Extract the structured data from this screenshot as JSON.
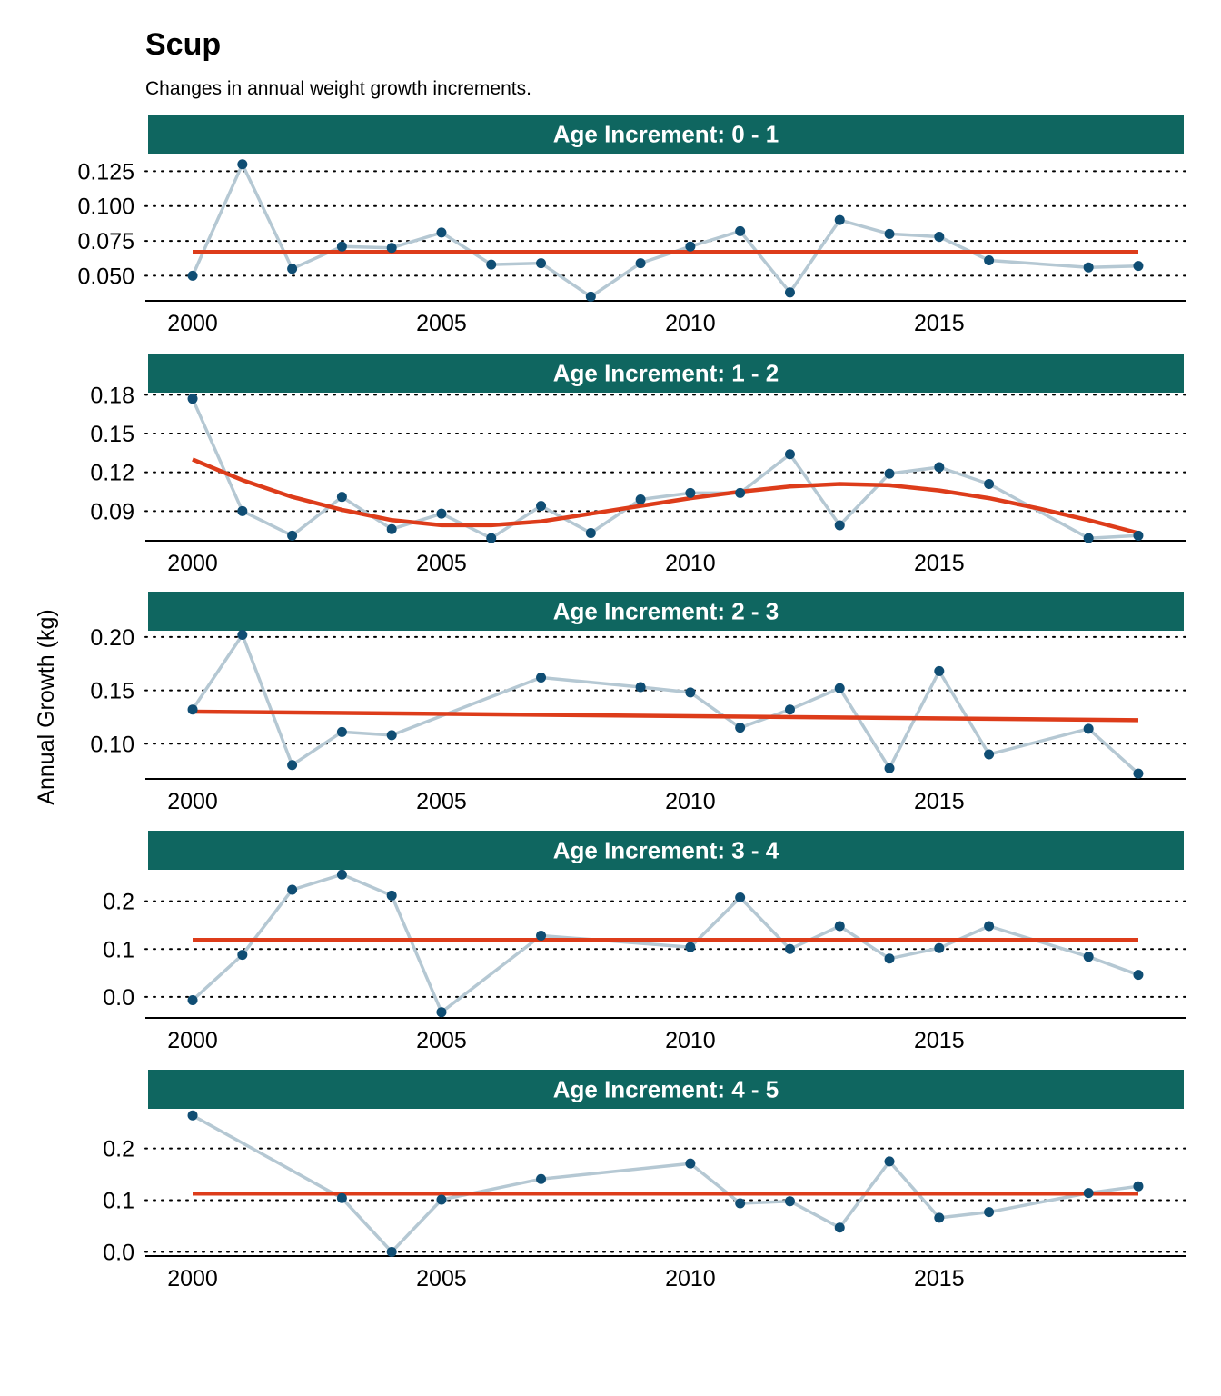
{
  "title": "Scup",
  "subtitle": "Changes in annual weight growth increments.",
  "ylabel": "Annual Growth  (kg)",
  "colors": {
    "strip": "#0f6660",
    "strip_text": "#ffffff",
    "line": "#b5c8d3",
    "point": "#0f4d73",
    "trend": "#dd3c1a",
    "grid": "#000000",
    "axis": "#000000"
  },
  "chart_data": [
    {
      "type": "line",
      "panel": "Age Increment: 0 - 1",
      "x": [
        2000,
        2001,
        2002,
        2003,
        2004,
        2005,
        2006,
        2007,
        2008,
        2009,
        2010,
        2011,
        2012,
        2013,
        2014,
        2015,
        2016,
        2018,
        2019
      ],
      "y": [
        0.05,
        0.13,
        0.055,
        0.071,
        0.07,
        0.081,
        0.058,
        0.059,
        0.035,
        0.059,
        0.071,
        0.082,
        0.038,
        0.09,
        0.08,
        0.078,
        0.061,
        0.056,
        0.057
      ],
      "trend": {
        "x": [
          2000,
          2019
        ],
        "y": [
          0.067,
          0.067
        ]
      },
      "yticks": [
        0.05,
        0.075,
        0.1,
        0.125
      ],
      "ytick_labels": [
        "0.050",
        "0.075",
        "0.100",
        "0.125"
      ],
      "ylim": [
        0.032,
        0.137
      ],
      "xticks": [
        2000,
        2005,
        2010,
        2015
      ],
      "xlim": [
        1999.05,
        2019.95
      ]
    },
    {
      "type": "line",
      "panel": "Age Increment: 1 - 2",
      "x": [
        2000,
        2001,
        2002,
        2003,
        2004,
        2005,
        2006,
        2007,
        2008,
        2009,
        2010,
        2011,
        2012,
        2013,
        2014,
        2015,
        2016,
        2018,
        2019
      ],
      "y": [
        0.177,
        0.09,
        0.071,
        0.101,
        0.076,
        0.088,
        0.069,
        0.094,
        0.073,
        0.099,
        0.104,
        0.104,
        0.134,
        0.079,
        0.119,
        0.124,
        0.111,
        0.069,
        0.071
      ],
      "trend": {
        "x": [
          2000,
          2001,
          2002,
          2003,
          2004,
          2005,
          2006,
          2007,
          2008,
          2009,
          2010,
          2011,
          2012,
          2013,
          2014,
          2015,
          2016,
          2017,
          2018,
          2019
        ],
        "y": [
          0.13,
          0.114,
          0.101,
          0.091,
          0.083,
          0.079,
          0.079,
          0.082,
          0.088,
          0.094,
          0.1,
          0.105,
          0.109,
          0.111,
          0.11,
          0.106,
          0.1,
          0.092,
          0.083,
          0.073
        ]
      },
      "yticks": [
        0.09,
        0.12,
        0.15,
        0.18
      ],
      "ytick_labels": [
        "0.09",
        "0.12",
        "0.15",
        "0.18"
      ],
      "ylim": [
        0.067,
        0.181
      ],
      "xticks": [
        2000,
        2005,
        2010,
        2015
      ],
      "xlim": [
        1999.05,
        2019.95
      ]
    },
    {
      "type": "line",
      "panel": "Age Increment: 2 - 3",
      "x": [
        2000,
        2001,
        2002,
        2003,
        2004,
        2007,
        2009,
        2010,
        2011,
        2012,
        2013,
        2014,
        2015,
        2016,
        2018,
        2019
      ],
      "y": [
        0.132,
        0.202,
        0.08,
        0.111,
        0.108,
        0.162,
        0.153,
        0.148,
        0.115,
        0.132,
        0.152,
        0.077,
        0.168,
        0.09,
        0.114,
        0.072
      ],
      "trend": {
        "x": [
          2000,
          2019
        ],
        "y": [
          0.13,
          0.122
        ]
      },
      "yticks": [
        0.1,
        0.15,
        0.2
      ],
      "ytick_labels": [
        "0.10",
        "0.15",
        "0.20"
      ],
      "ylim": [
        0.067,
        0.205
      ],
      "xticks": [
        2000,
        2005,
        2010,
        2015
      ],
      "xlim": [
        1999.05,
        2019.95
      ]
    },
    {
      "type": "line",
      "panel": "Age Increment: 3 - 4",
      "x": [
        2000,
        2001,
        2002,
        2003,
        2004,
        2005,
        2007,
        2010,
        2011,
        2012,
        2013,
        2014,
        2015,
        2016,
        2018,
        2019
      ],
      "y": [
        -0.007,
        0.088,
        0.224,
        0.256,
        0.212,
        -0.032,
        0.128,
        0.104,
        0.208,
        0.1,
        0.148,
        0.08,
        0.102,
        0.148,
        0.084,
        0.046
      ],
      "trend": {
        "x": [
          2000,
          2019
        ],
        "y": [
          0.119,
          0.119
        ]
      },
      "yticks": [
        0.0,
        0.1,
        0.2
      ],
      "ytick_labels": [
        "0.0",
        "0.1",
        "0.2"
      ],
      "ylim": [
        -0.044,
        0.264
      ],
      "xticks": [
        2000,
        2005,
        2010,
        2015
      ],
      "xlim": [
        1999.05,
        2019.95
      ]
    },
    {
      "type": "line",
      "panel": "Age Increment: 4 - 5",
      "x": [
        2000,
        2003,
        2004,
        2005,
        2007,
        2010,
        2011,
        2012,
        2013,
        2014,
        2015,
        2016,
        2018,
        2019
      ],
      "y": [
        0.264,
        0.104,
        0.0,
        0.101,
        0.141,
        0.171,
        0.094,
        0.098,
        0.047,
        0.175,
        0.066,
        0.077,
        0.114,
        0.127
      ],
      "trend": {
        "x": [
          2000,
          2019
        ],
        "y": [
          0.113,
          0.113
        ]
      },
      "yticks": [
        0.0,
        0.1,
        0.2
      ],
      "ytick_labels": [
        "0.0",
        "0.1",
        "0.2"
      ],
      "ylim": [
        -0.008,
        0.275
      ],
      "xticks": [
        2000,
        2005,
        2010,
        2015
      ],
      "xlim": [
        1999.05,
        2019.95
      ]
    }
  ]
}
